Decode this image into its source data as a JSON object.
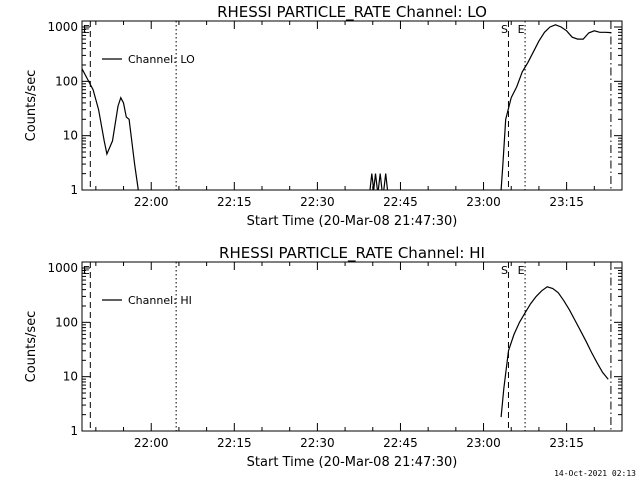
{
  "footer": {
    "timestamp": "14-Oct-2021 02:13"
  },
  "chart_data": [
    {
      "type": "line",
      "title": "RHESSI PARTICLE_RATE Channel: LO",
      "xlabel": "Start Time (20-Mar-08 21:47:30)",
      "ylabel": "Counts/sec",
      "yscale": "log",
      "ylim": [
        1,
        1000
      ],
      "xlim": [
        "21:47:30",
        "23:25:00"
      ],
      "x_ticks": [
        "22:00",
        "22:15",
        "22:30",
        "22:45",
        "23:00",
        "23:15"
      ],
      "y_ticks": [
        "1",
        "10",
        "100",
        "1000"
      ],
      "legend": {
        "label": "Channel: LO",
        "position": "top-left"
      },
      "markers": [
        {
          "label": "E",
          "time": "21:49:00",
          "style": "dashed"
        },
        {
          "label": "",
          "time": "22:04:30",
          "style": "dotted"
        },
        {
          "label": "S",
          "time": "23:04:30",
          "style": "dashed"
        },
        {
          "label": "E",
          "time": "23:07:30",
          "style": "dotted"
        },
        {
          "label": "",
          "time": "23:23:00",
          "style": "dashdot"
        }
      ],
      "segments": [
        [
          [
            "21:47:30",
            170
          ],
          [
            "21:48:30",
            110
          ],
          [
            "21:49:30",
            70
          ],
          [
            "21:50:30",
            30
          ],
          [
            "21:51:30",
            8
          ],
          [
            "21:52:00",
            4.6
          ],
          [
            "21:53:00",
            8
          ],
          [
            "21:54:00",
            35
          ],
          [
            "21:54:30",
            50
          ],
          [
            "21:55:00",
            40
          ],
          [
            "21:55:30",
            22
          ],
          [
            "21:56:00",
            20
          ],
          [
            "21:57:00",
            3
          ],
          [
            "21:57:40",
            1
          ]
        ],
        [
          [
            "22:39:30",
            1
          ],
          [
            "22:39:50",
            2
          ],
          [
            "22:40:10",
            1
          ],
          [
            "22:40:30",
            2
          ],
          [
            "22:40:50",
            1
          ]
        ],
        [
          [
            "22:41:00",
            1
          ],
          [
            "22:41:20",
            2
          ],
          [
            "22:41:40",
            1
          ]
        ],
        [
          [
            "22:42:00",
            1
          ],
          [
            "22:42:20",
            2
          ],
          [
            "22:42:40",
            1
          ]
        ],
        [
          [
            "23:03:10",
            1
          ],
          [
            "23:03:30",
            3
          ],
          [
            "23:04:00",
            20
          ],
          [
            "23:05:00",
            50
          ],
          [
            "23:06:00",
            80
          ],
          [
            "23:07:00",
            150
          ],
          [
            "23:08:00",
            220
          ],
          [
            "23:09:00",
            350
          ],
          [
            "23:10:00",
            550
          ],
          [
            "23:11:00",
            800
          ],
          [
            "23:12:00",
            1000
          ],
          [
            "23:13:00",
            1100
          ],
          [
            "23:14:00",
            1000
          ],
          [
            "23:15:00",
            850
          ],
          [
            "23:16:00",
            650
          ],
          [
            "23:17:00",
            600
          ],
          [
            "23:18:00",
            600
          ],
          [
            "23:19:00",
            780
          ],
          [
            "23:20:00",
            850
          ],
          [
            "23:21:00",
            800
          ],
          [
            "23:22:00",
            800
          ],
          [
            "23:23:00",
            790
          ]
        ]
      ]
    },
    {
      "type": "line",
      "title": "RHESSI PARTICLE_RATE Channel: HI",
      "xlabel": "Start Time (20-Mar-08 21:47:30)",
      "ylabel": "Counts/sec",
      "yscale": "log",
      "ylim": [
        1,
        1000
      ],
      "xlim": [
        "21:47:30",
        "23:25:00"
      ],
      "x_ticks": [
        "22:00",
        "22:15",
        "22:30",
        "22:45",
        "23:00",
        "23:15"
      ],
      "y_ticks": [
        "1",
        "10",
        "100",
        "1000"
      ],
      "legend": {
        "label": "Channel: HI",
        "position": "top-left"
      },
      "markers": [
        {
          "label": "E",
          "time": "21:49:00",
          "style": "dashed"
        },
        {
          "label": "",
          "time": "22:04:30",
          "style": "dotted"
        },
        {
          "label": "S",
          "time": "23:04:30",
          "style": "dashed"
        },
        {
          "label": "E",
          "time": "23:07:30",
          "style": "dotted"
        },
        {
          "label": "",
          "time": "23:23:00",
          "style": "dashdot"
        }
      ],
      "segments": [
        [
          [
            "23:03:10",
            1.8
          ],
          [
            "23:03:40",
            6
          ],
          [
            "23:04:30",
            30
          ],
          [
            "23:05:30",
            60
          ],
          [
            "23:06:30",
            100
          ],
          [
            "23:07:30",
            150
          ],
          [
            "23:08:30",
            220
          ],
          [
            "23:09:30",
            300
          ],
          [
            "23:10:30",
            380
          ],
          [
            "23:11:30",
            450
          ],
          [
            "23:12:30",
            420
          ],
          [
            "23:13:30",
            350
          ],
          [
            "23:14:30",
            250
          ],
          [
            "23:15:30",
            170
          ],
          [
            "23:16:30",
            110
          ],
          [
            "23:17:30",
            70
          ],
          [
            "23:18:30",
            45
          ],
          [
            "23:19:30",
            28
          ],
          [
            "23:20:30",
            18
          ],
          [
            "23:21:30",
            12
          ],
          [
            "23:22:30",
            9
          ]
        ]
      ]
    }
  ]
}
